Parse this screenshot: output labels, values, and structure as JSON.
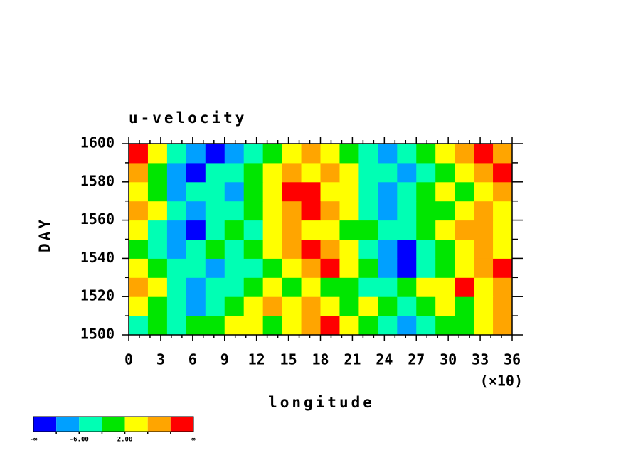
{
  "chart_data": {
    "type": "heatmap",
    "title": "u-velocity",
    "xlabel": "longitude",
    "xmultiplier": "(×10)",
    "ylabel": "DAY",
    "xlim": [
      0,
      36
    ],
    "xticks": [
      0,
      3,
      6,
      9,
      12,
      15,
      18,
      21,
      24,
      27,
      30,
      33,
      36
    ],
    "xminorticks": [
      1,
      2,
      4,
      5,
      7,
      8,
      10,
      11,
      13,
      14,
      16,
      17,
      19,
      20,
      22,
      23,
      25,
      26,
      28,
      29,
      31,
      32,
      34,
      35
    ],
    "ylim": [
      1500,
      1600
    ],
    "yticks": [
      1500,
      1520,
      1540,
      1560,
      1580,
      1600
    ],
    "yminorticks": [
      1510,
      1530,
      1550,
      1570,
      1590
    ],
    "x": [
      0.9,
      2.7,
      4.5,
      6.3,
      8.1,
      9.9,
      11.7,
      13.5,
      15.3,
      17.1,
      18.9,
      20.7,
      22.5,
      24.3,
      26.1,
      27.9,
      29.7,
      31.5,
      33.3,
      35.1
    ],
    "y": [
      1505,
      1515,
      1525,
      1535,
      1545,
      1555,
      1565,
      1575,
      1585,
      1595
    ],
    "z": [
      [
        -4,
        0,
        -4,
        0,
        0,
        4,
        4,
        0,
        4,
        8,
        12,
        4,
        0,
        -4,
        -8,
        -4,
        0,
        0,
        4,
        8
      ],
      [
        4,
        0,
        -4,
        -8,
        -4,
        0,
        4,
        8,
        4,
        8,
        4,
        0,
        4,
        0,
        -4,
        0,
        4,
        0,
        4,
        8
      ],
      [
        8,
        4,
        -4,
        -8,
        -4,
        -4,
        0,
        4,
        0,
        4,
        0,
        0,
        -4,
        -4,
        0,
        4,
        4,
        12,
        4,
        8
      ],
      [
        4,
        0,
        -4,
        -4,
        -8,
        -4,
        -4,
        0,
        4,
        8,
        12,
        4,
        0,
        -8,
        -12,
        -4,
        0,
        4,
        8,
        12
      ],
      [
        0,
        -4,
        -8,
        -4,
        0,
        -4,
        0,
        4,
        8,
        12,
        8,
        4,
        -4,
        -8,
        -12,
        -4,
        0,
        4,
        8,
        4
      ],
      [
        4,
        -4,
        -8,
        -12,
        -4,
        0,
        -4,
        4,
        8,
        4,
        4,
        0,
        0,
        -4,
        -4,
        0,
        4,
        8,
        8,
        4
      ],
      [
        8,
        4,
        -4,
        -8,
        -4,
        -4,
        0,
        4,
        8,
        12,
        8,
        4,
        -4,
        -8,
        -4,
        0,
        0,
        4,
        8,
        4
      ],
      [
        4,
        0,
        -8,
        -4,
        -4,
        -8,
        0,
        4,
        12,
        12,
        4,
        4,
        -4,
        -8,
        -4,
        0,
        4,
        0,
        4,
        8
      ],
      [
        8,
        0,
        -8,
        -12,
        -4,
        -4,
        0,
        4,
        8,
        4,
        8,
        4,
        -4,
        -4,
        -8,
        -4,
        0,
        4,
        8,
        12
      ],
      [
        12,
        4,
        -4,
        -8,
        -12,
        -8,
        -4,
        0,
        4,
        8,
        4,
        0,
        -4,
        -8,
        -4,
        0,
        4,
        8,
        12,
        8
      ]
    ],
    "colorbar": {
      "bounds": [
        -10,
        -6,
        -2,
        2,
        6,
        10
      ],
      "colors": [
        "#0000ff",
        "#00a0ff",
        "#00ffb4",
        "#00e600",
        "#ffff00",
        "#ffa500",
        "#ff0000"
      ],
      "ticks": [
        {
          "value": -6,
          "label": "-6.00"
        },
        {
          "value": 2,
          "label": "2.00"
        }
      ],
      "ends": [
        "-∞",
        "∞"
      ]
    }
  }
}
